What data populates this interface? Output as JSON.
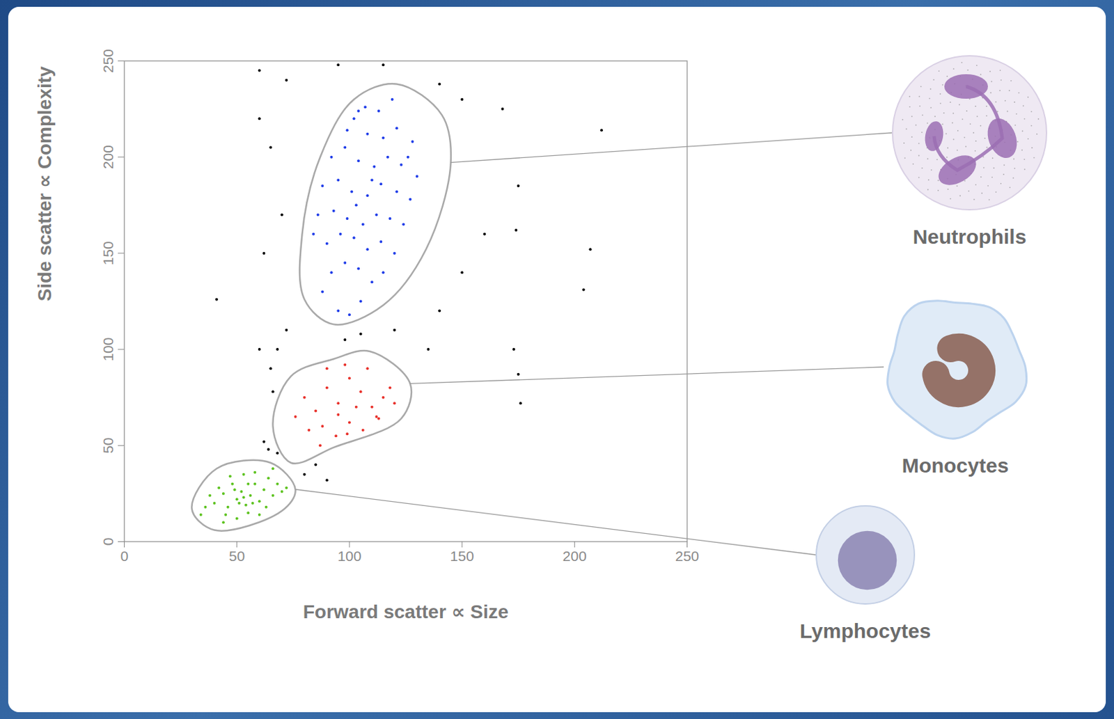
{
  "chart_data": {
    "type": "scatter",
    "xlabel": "Forward scatter ∝ Size",
    "ylabel": "Side scatter ∝ Complexity",
    "xlim": [
      0,
      250
    ],
    "ylim": [
      0,
      250
    ],
    "xticks": [
      0,
      50,
      100,
      150,
      200,
      250
    ],
    "yticks": [
      0,
      50,
      100,
      150,
      200,
      250
    ],
    "marker": "dot",
    "series": [
      {
        "color": "#000000",
        "x": [
          60,
          72,
          95,
          115,
          140,
          150,
          168,
          212,
          207,
          204,
          175,
          160,
          174,
          173,
          175,
          176,
          60,
          65,
          70,
          62,
          41,
          72,
          68,
          65,
          66,
          62,
          68,
          80,
          85,
          90,
          64,
          98,
          105,
          120,
          140,
          150,
          135,
          60
        ],
        "y": [
          245,
          240,
          248,
          248,
          238,
          230,
          225,
          214,
          152,
          131,
          185,
          160,
          162,
          100,
          87,
          72,
          220,
          205,
          170,
          150,
          126,
          110,
          100,
          90,
          78,
          52,
          46,
          35,
          40,
          32,
          48,
          105,
          108,
          110,
          120,
          140,
          100,
          100
        ]
      },
      {
        "name": "Neutrophils",
        "color": "#1f3ce8",
        "x": [
          88,
          95,
          100,
          105,
          92,
          98,
          104,
          110,
          115,
          90,
          96,
          102,
          108,
          114,
          120,
          86,
          93,
          99,
          106,
          112,
          118,
          124,
          88,
          95,
          101,
          108,
          114,
          121,
          127,
          92,
          98,
          104,
          111,
          117,
          123,
          130,
          99,
          102,
          108,
          115,
          121,
          128,
          104,
          107,
          113,
          119,
          84,
          126,
          110,
          103
        ],
        "y": [
          130,
          120,
          118,
          125,
          140,
          145,
          142,
          135,
          140,
          155,
          160,
          158,
          152,
          156,
          150,
          170,
          172,
          168,
          165,
          170,
          168,
          165,
          185,
          188,
          182,
          180,
          186,
          182,
          178,
          200,
          205,
          198,
          195,
          200,
          196,
          190,
          214,
          220,
          212,
          210,
          215,
          208,
          224,
          226,
          224,
          230,
          160,
          200,
          188,
          175
        ],
        "gate": {
          "x": [
            121,
            141,
            145,
            134,
            115,
            93,
            80,
            79,
            87,
            102
          ],
          "y": [
            238,
            222,
            197,
            152,
            123,
            113,
            126,
            160,
            200,
            230
          ]
        }
      },
      {
        "name": "Monocytes",
        "color": "#e8302a",
        "x": [
          80,
          85,
          90,
          95,
          100,
          105,
          110,
          115,
          120,
          88,
          94,
          100,
          106,
          112,
          118,
          82,
          90,
          98,
          108,
          76,
          95,
          103,
          87,
          99,
          113
        ],
        "y": [
          75,
          68,
          80,
          72,
          85,
          78,
          70,
          75,
          72,
          60,
          55,
          62,
          58,
          65,
          80,
          58,
          90,
          92,
          90,
          65,
          66,
          70,
          50,
          56,
          64
        ],
        "gate": {
          "x": [
            109,
            127,
            123,
            93,
            74,
            66,
            74,
            93
          ],
          "y": [
            99,
            82,
            64,
            49,
            41,
            60,
            86,
            95
          ]
        }
      },
      {
        "name": "Lymphocytes",
        "color": "#5cc21e",
        "x": [
          40,
          44,
          46,
          48,
          50,
          52,
          54,
          56,
          58,
          60,
          62,
          64,
          66,
          68,
          45,
          50,
          55,
          60,
          42,
          47,
          53,
          58,
          36,
          38,
          51,
          53,
          49,
          57,
          63,
          70,
          34,
          44,
          66,
          72,
          55
        ],
        "y": [
          20,
          25,
          18,
          30,
          22,
          26,
          19,
          24,
          30,
          21,
          27,
          33,
          24,
          30,
          14,
          12,
          15,
          14,
          28,
          34,
          35,
          36,
          18,
          24,
          20,
          23,
          27,
          20,
          18,
          26,
          14,
          10,
          38,
          28,
          30
        ],
        "gate": {
          "x": [
            41,
            65,
            76,
            70,
            40,
            30
          ],
          "y": [
            38,
            41,
            27,
            16,
            6,
            17
          ]
        }
      }
    ]
  }
}
